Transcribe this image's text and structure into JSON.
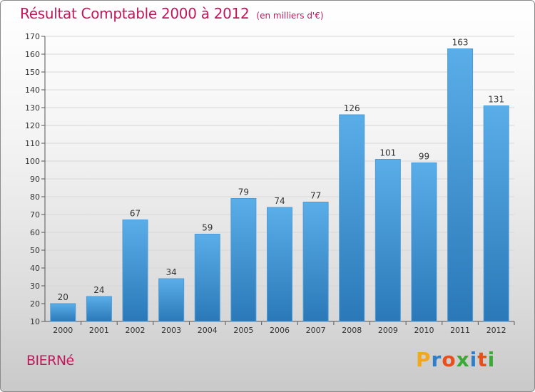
{
  "header": {
    "title": "Résultat Comptable 2000 à 2012",
    "subtitle": "(en milliers d'€)"
  },
  "footer": {
    "commune": "BIERNé",
    "logo_letters": [
      "P",
      "r",
      "o",
      "x",
      "i",
      "t",
      "i"
    ],
    "logo_colors": [
      "#f2a81d",
      "#2f7fc8",
      "#e94e1b",
      "#3aa935",
      "#2f7fc8",
      "#e94e1b",
      "#3aa935"
    ]
  },
  "colors": {
    "title": "#c0185a",
    "bar_top": "#5aaee8",
    "bar_bottom": "#2a78b8",
    "grid": "#d8d8d8"
  },
  "chart_data": {
    "type": "bar",
    "title": "Résultat Comptable 2000 à 2012",
    "xlabel": "",
    "ylabel": "",
    "categories": [
      "2000",
      "2001",
      "2002",
      "2003",
      "2004",
      "2005",
      "2006",
      "2007",
      "2008",
      "2009",
      "2010",
      "2011",
      "2012"
    ],
    "values": [
      20,
      24,
      67,
      34,
      59,
      79,
      74,
      77,
      126,
      101,
      99,
      163,
      131
    ],
    "ylim": [
      10,
      170
    ],
    "yticks": [
      10,
      20,
      30,
      40,
      50,
      60,
      70,
      80,
      90,
      100,
      110,
      120,
      130,
      140,
      150,
      160,
      170
    ],
    "grid": true
  }
}
